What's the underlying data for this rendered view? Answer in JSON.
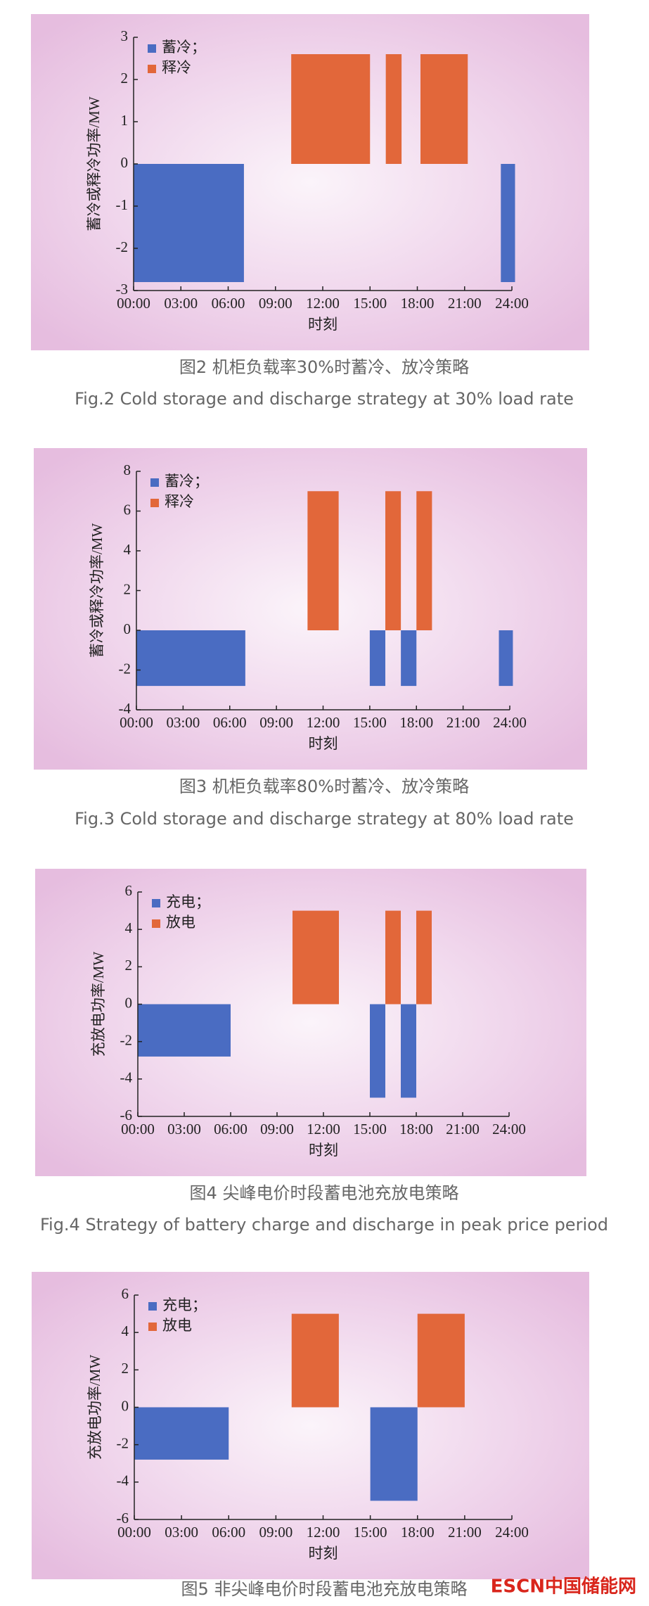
{
  "chart_data": [
    {
      "type": "bar",
      "ylabel": "蓄冷或释冷功率/MW",
      "xlabel": "时刻",
      "legend": "upper left",
      "xlim": [
        0,
        24
      ],
      "xticks": [
        {
          "value": 0,
          "label": "00:00"
        },
        {
          "value": 3,
          "label": "03:00"
        },
        {
          "value": 6,
          "label": "06:00"
        },
        {
          "value": 9,
          "label": "09:00"
        },
        {
          "value": 12,
          "label": "12:00"
        },
        {
          "value": 15,
          "label": "15:00"
        },
        {
          "value": 18,
          "label": "18:00"
        },
        {
          "value": 21,
          "label": "21:00"
        },
        {
          "value": 24,
          "label": "24:00"
        }
      ],
      "ylim": [
        -3,
        3
      ],
      "yticks": [
        -3,
        -2,
        -1,
        0,
        1,
        2,
        3
      ],
      "series": [
        {
          "name": "蓄冷；",
          "color": "#4a6cc2",
          "starts": [
            0,
            23.3
          ],
          "ends": [
            7,
            24.2
          ],
          "values": [
            -2.8,
            -2.8
          ]
        },
        {
          "name": "释冷",
          "color": "#e2673a",
          "starts": [
            10,
            16,
            18.2
          ],
          "ends": [
            15,
            17,
            21.2
          ],
          "values": [
            2.6,
            2.6,
            2.6
          ]
        }
      ],
      "caption_cn": "图2  机柜负载率30%时蓄冷、放冷策略",
      "caption_en": "Fig.2  Cold storage and discharge strategy at 30% load rate"
    },
    {
      "type": "bar",
      "ylabel": "蓄冷或释冷功率/MW",
      "xlabel": "时刻",
      "legend": "upper left",
      "xlim": [
        0,
        24
      ],
      "xticks": [
        {
          "value": 0,
          "label": "00:00"
        },
        {
          "value": 3,
          "label": "03:00"
        },
        {
          "value": 6,
          "label": "06:00"
        },
        {
          "value": 9,
          "label": "09:00"
        },
        {
          "value": 12,
          "label": "12:00"
        },
        {
          "value": 15,
          "label": "15:00"
        },
        {
          "value": 18,
          "label": "18:00"
        },
        {
          "value": 21,
          "label": "21:00"
        },
        {
          "value": 24,
          "label": "24:00"
        }
      ],
      "ylim": [
        -4,
        8
      ],
      "yticks": [
        -4,
        -2,
        0,
        2,
        4,
        6,
        8
      ],
      "series": [
        {
          "name": "蓄冷；",
          "color": "#4a6cc2",
          "starts": [
            0,
            15,
            17,
            23.3
          ],
          "ends": [
            7,
            16,
            18,
            24.2
          ],
          "values": [
            -2.8,
            -2.8,
            -2.8,
            -2.8
          ]
        },
        {
          "name": "释冷",
          "color": "#e2673a",
          "starts": [
            11,
            16,
            18
          ],
          "ends": [
            13,
            17,
            19
          ],
          "values": [
            7,
            7,
            7
          ]
        }
      ],
      "caption_cn": "图3  机柜负载率80%时蓄冷、放冷策略",
      "caption_en": "Fig.3  Cold storage and discharge strategy at 80% load rate"
    },
    {
      "type": "bar",
      "ylabel": "充放电功率/MW",
      "xlabel": "时刻",
      "legend": "upper left",
      "xlim": [
        0,
        24
      ],
      "xticks": [
        {
          "value": 0,
          "label": "00:00"
        },
        {
          "value": 3,
          "label": "03:00"
        },
        {
          "value": 6,
          "label": "06:00"
        },
        {
          "value": 9,
          "label": "09:00"
        },
        {
          "value": 12,
          "label": "12:00"
        },
        {
          "value": 15,
          "label": "15:00"
        },
        {
          "value": 18,
          "label": "18:00"
        },
        {
          "value": 21,
          "label": "21:00"
        },
        {
          "value": 24,
          "label": "24:00"
        }
      ],
      "ylim": [
        -6,
        6
      ],
      "yticks": [
        -6,
        -4,
        -2,
        0,
        2,
        4,
        6
      ],
      "series": [
        {
          "name": "充电；",
          "color": "#4a6cc2",
          "starts": [
            0,
            15,
            17
          ],
          "ends": [
            6,
            16,
            18
          ],
          "values": [
            -2.8,
            -5,
            -5
          ]
        },
        {
          "name": "放电",
          "color": "#e2673a",
          "starts": [
            10,
            16,
            18
          ],
          "ends": [
            13,
            17,
            19
          ],
          "values": [
            5,
            5,
            5
          ]
        }
      ],
      "caption_cn": "图4  尖峰电价时段蓄电池充放电策略",
      "caption_en": "Fig.4  Strategy of battery charge and discharge in peak price period"
    },
    {
      "type": "bar",
      "ylabel": "充放电功率/MW",
      "xlabel": "时刻",
      "legend": "upper left",
      "xlim": [
        0,
        24
      ],
      "xticks": [
        {
          "value": 0,
          "label": "00:00"
        },
        {
          "value": 3,
          "label": "03:00"
        },
        {
          "value": 6,
          "label": "06:00"
        },
        {
          "value": 9,
          "label": "09:00"
        },
        {
          "value": 12,
          "label": "12:00"
        },
        {
          "value": 15,
          "label": "15:00"
        },
        {
          "value": 18,
          "label": "18:00"
        },
        {
          "value": 21,
          "label": "21:00"
        },
        {
          "value": 24,
          "label": "24:00"
        }
      ],
      "ylim": [
        -6,
        6
      ],
      "yticks": [
        -6,
        -4,
        -2,
        0,
        2,
        4,
        6
      ],
      "series": [
        {
          "name": "充电；",
          "color": "#4a6cc2",
          "starts": [
            0,
            15
          ],
          "ends": [
            6,
            18
          ],
          "values": [
            -2.8,
            -5
          ]
        },
        {
          "name": "放电",
          "color": "#e2673a",
          "starts": [
            10,
            18
          ],
          "ends": [
            13,
            21
          ],
          "values": [
            5,
            5
          ]
        }
      ],
      "caption_cn": "图5  非尖峰电价时段蓄电池充放电策略"
    }
  ],
  "watermark": "ESCN中国储能网"
}
